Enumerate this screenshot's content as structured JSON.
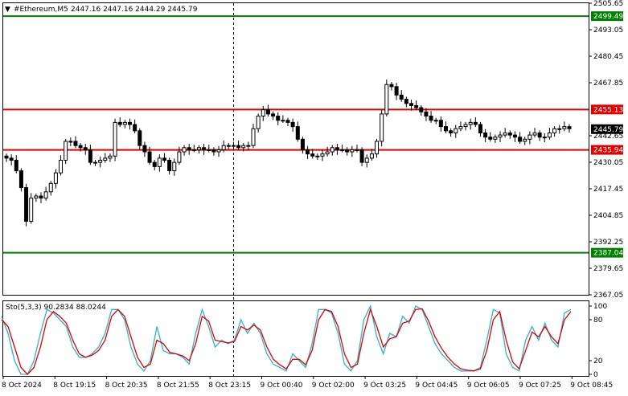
{
  "header": {
    "symbol": "#Ethereum,M5",
    "ohlc": "2447.16 2447.16 2444.29 2445.79"
  },
  "colors": {
    "background": "#ffffff",
    "candle": "#000000",
    "resistance": "#e00000",
    "support": "#008000",
    "current_price_bg": "#000000",
    "stoch_main": "#2ab5c9",
    "stoch_signal": "#e00000"
  },
  "chart_data": {
    "type": "candlestick",
    "price_axis": {
      "ticks": [
        "2505.65",
        "2493.05",
        "2480.45",
        "2467.85",
        "2442.65",
        "2430.05",
        "2417.45",
        "2404.85",
        "2392.25",
        "2379.65",
        "2367.05"
      ],
      "ylim": [
        2367.05,
        2505.65
      ]
    },
    "x_ticks": [
      "8 Oct 2024",
      "8 Oct 19:15",
      "8 Oct 20:35",
      "8 Oct 21:55",
      "8 Oct 23:15",
      "9 Oct 00:40",
      "9 Oct 02:00",
      "9 Oct 03:25",
      "9 Oct 04:45",
      "9 Oct 06:05",
      "9 Oct 07:25",
      "9 Oct 08:45"
    ],
    "current_price": "2445.79",
    "levels": [
      {
        "label": "2499.49",
        "value": 2499.49,
        "kind": "support"
      },
      {
        "label": "2455.13",
        "value": 2455.13,
        "kind": "resistance"
      },
      {
        "label": "2435.94",
        "value": 2435.94,
        "kind": "resistance"
      },
      {
        "label": "2387.04",
        "value": 2387.04,
        "kind": "support"
      }
    ],
    "closes": [
      2432,
      2431,
      2426,
      2418,
      2402,
      2413,
      2414,
      2413,
      2416,
      2420,
      2425,
      2431,
      2440,
      2440,
      2438,
      2437,
      2436,
      2430,
      2430,
      2431,
      2432,
      2433,
      2449,
      2448,
      2449,
      2448,
      2445,
      2438,
      2435,
      2430,
      2428,
      2432,
      2431,
      2426,
      2430,
      2435,
      2437,
      2436,
      2436,
      2437,
      2436,
      2436,
      2435,
      2436,
      2438,
      2438,
      2438,
      2437,
      2438,
      2438,
      2446,
      2452,
      2455,
      2453,
      2452,
      2450,
      2450,
      2449,
      2447,
      2441,
      2436,
      2434,
      2433,
      2433,
      2434,
      2435,
      2437,
      2436,
      2436,
      2435,
      2436,
      2436,
      2430,
      2432,
      2434,
      2440,
      2453,
      2467,
      2466,
      2462,
      2460,
      2458,
      2457,
      2456,
      2454,
      2452,
      2450,
      2450,
      2447,
      2445,
      2444,
      2446,
      2447,
      2448,
      2449,
      2448,
      2444,
      2442,
      2441,
      2442,
      2443,
      2444,
      2443,
      2442,
      2440,
      2441,
      2443,
      2444,
      2442,
      2442,
      2444,
      2446,
      2446,
      2447,
      2446
    ],
    "stochastic": {
      "label": "Sto(5,3,3) 90.2834 88.0244",
      "ticks": [
        "100",
        "80",
        "20",
        "0"
      ],
      "ylim": [
        0,
        100
      ],
      "main": [
        85,
        60,
        20,
        0,
        0,
        20,
        60,
        95,
        90,
        80,
        70,
        40,
        25,
        25,
        30,
        40,
        60,
        95,
        95,
        80,
        40,
        15,
        5,
        20,
        70,
        35,
        30,
        30,
        25,
        15,
        60,
        95,
        70,
        40,
        50,
        45,
        50,
        80,
        60,
        75,
        60,
        30,
        15,
        10,
        5,
        30,
        20,
        10,
        45,
        95,
        95,
        90,
        60,
        15,
        5,
        20,
        80,
        100,
        55,
        30,
        60,
        55,
        85,
        75,
        100,
        95,
        70,
        45,
        30,
        20,
        10,
        5,
        5,
        5,
        10,
        50,
        95,
        90,
        30,
        10,
        5,
        50,
        70,
        50,
        75,
        50,
        40,
        90,
        95
      ],
      "signal": [
        80,
        70,
        40,
        10,
        0,
        10,
        40,
        80,
        92,
        85,
        75,
        50,
        30,
        25,
        28,
        35,
        50,
        85,
        95,
        85,
        55,
        25,
        10,
        15,
        50,
        45,
        32,
        30,
        27,
        20,
        45,
        85,
        78,
        50,
        48,
        46,
        48,
        70,
        65,
        72,
        65,
        40,
        22,
        14,
        8,
        22,
        22,
        14,
        35,
        80,
        95,
        92,
        70,
        30,
        10,
        15,
        60,
        95,
        70,
        40,
        52,
        55,
        75,
        78,
        95,
        96,
        78,
        55,
        38,
        25,
        15,
        8,
        6,
        5,
        8,
        35,
        80,
        92,
        50,
        18,
        8,
        35,
        62,
        55,
        70,
        55,
        45,
        80,
        92
      ]
    }
  }
}
